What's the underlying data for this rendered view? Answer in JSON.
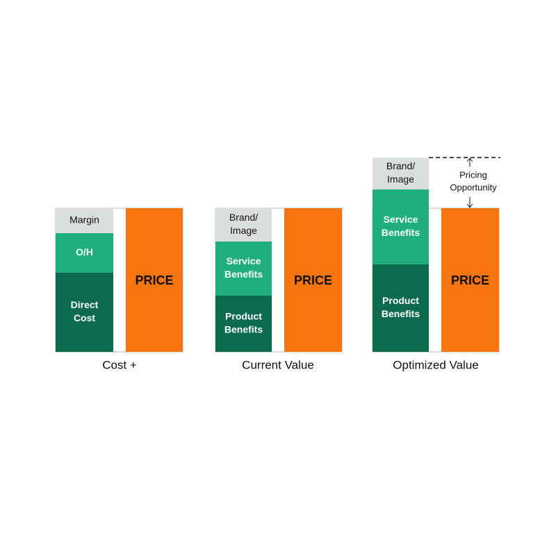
{
  "panels": [
    {
      "caption": "Cost +",
      "price": "PRICE",
      "blocks": [
        {
          "lines": [
            "Margin"
          ]
        },
        {
          "lines": [
            "O/H"
          ]
        },
        {
          "lines": [
            "Direct",
            "Cost"
          ]
        }
      ]
    },
    {
      "caption": "Current Value",
      "price": "PRICE",
      "blocks": [
        {
          "lines": [
            "Brand/",
            "Image"
          ]
        },
        {
          "lines": [
            "Service",
            "Benefits"
          ]
        },
        {
          "lines": [
            "Product",
            "Benefits"
          ]
        }
      ]
    },
    {
      "caption": "Optimized Value",
      "price": "PRICE",
      "blocks": [
        {
          "lines": [
            "Brand/",
            "Image"
          ]
        },
        {
          "lines": [
            "Service",
            "Benefits"
          ]
        },
        {
          "lines": [
            "Product",
            "Benefits"
          ]
        }
      ]
    }
  ],
  "annotation": {
    "lines": [
      "Pricing",
      "Opportunity"
    ]
  }
}
